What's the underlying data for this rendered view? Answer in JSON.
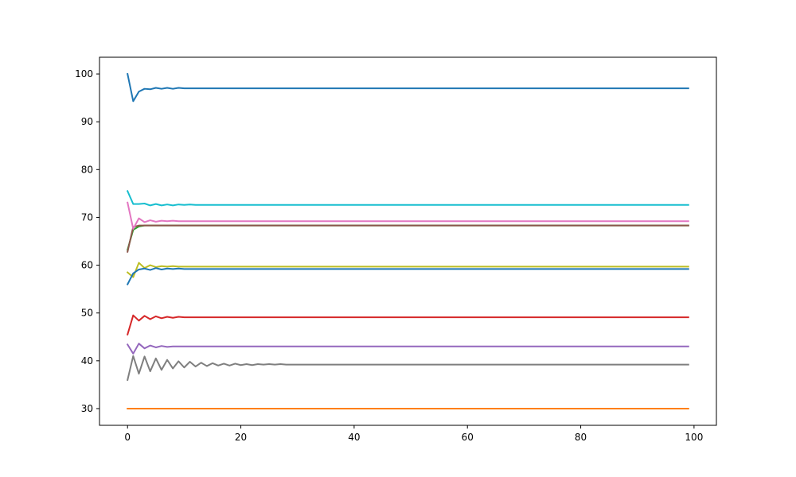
{
  "chart_data": {
    "type": "line",
    "title": "",
    "xlabel": "",
    "ylabel": "",
    "xlim": [
      -4.95,
      103.95
    ],
    "ylim": [
      26.5,
      103.5
    ],
    "x_ticks": [
      0,
      20,
      40,
      60,
      80,
      100
    ],
    "x_tick_labels": [
      "0",
      "20",
      "40",
      "60",
      "80",
      "100"
    ],
    "y_ticks": [
      30,
      40,
      50,
      60,
      70,
      80,
      90,
      100
    ],
    "y_tick_labels": [
      "30",
      "40",
      "50",
      "60",
      "70",
      "80",
      "90",
      "100"
    ],
    "grid": false,
    "legend": "none",
    "n_points": 100,
    "series": [
      {
        "color": "#1f77b4",
        "start": [
          100,
          94.3,
          96.3,
          96.9,
          96.8,
          97.1,
          96.9,
          97.1,
          96.9,
          97.1
        ],
        "final": 97.0
      },
      {
        "color": "#ff7f0e",
        "start": [
          30,
          30,
          30,
          30,
          30,
          30,
          30,
          30,
          30,
          30
        ],
        "final": 30.0
      },
      {
        "color": "#2ca02c",
        "start": [
          63.2,
          67.4,
          68.1,
          68.3,
          68.3,
          68.3,
          68.3,
          68.3,
          68.3,
          68.3
        ],
        "final": 68.3
      },
      {
        "color": "#d62728",
        "start": [
          45.5,
          49.5,
          48.4,
          49.4,
          48.7,
          49.3,
          48.9,
          49.2,
          49.0,
          49.2
        ],
        "final": 49.1
      },
      {
        "color": "#9467bd",
        "start": [
          43.4,
          41.5,
          43.6,
          42.6,
          43.2,
          42.8,
          43.1,
          42.9,
          43.0,
          43.0
        ],
        "final": 43.0
      },
      {
        "color": "#8c564b",
        "start": [
          62.8,
          68.0,
          68.3,
          68.3,
          68.3,
          68.3,
          68.3,
          68.3,
          68.3,
          68.3
        ],
        "final": 68.3
      },
      {
        "color": "#e377c2",
        "start": [
          73.1,
          67.6,
          69.8,
          69.0,
          69.4,
          69.1,
          69.3,
          69.2,
          69.3,
          69.2
        ],
        "final": 69.2
      },
      {
        "color": "#7f7f7f",
        "start": [
          36.0,
          41.0,
          37.3,
          40.9,
          37.8,
          40.5,
          38.1,
          40.2,
          38.4,
          39.9,
          38.6,
          39.8,
          38.8,
          39.6,
          38.9,
          39.5,
          39.0,
          39.4,
          39.0,
          39.4,
          39.1,
          39.3,
          39.1,
          39.3,
          39.2,
          39.3,
          39.2,
          39.3,
          39.2,
          39.2
        ],
        "final": 39.2
      },
      {
        "color": "#bcbd22",
        "start": [
          58.5,
          57.5,
          60.5,
          59.4,
          60.0,
          59.6,
          59.8,
          59.7,
          59.8,
          59.7
        ],
        "final": 59.7
      },
      {
        "color": "#17becf",
        "start": [
          75.5,
          72.8,
          72.8,
          72.9,
          72.5,
          72.8,
          72.5,
          72.7,
          72.5,
          72.7,
          72.6,
          72.7
        ],
        "final": 72.6
      },
      {
        "color": "#1f77b4",
        "start": [
          56.0,
          58.3,
          59.1,
          59.3,
          59.0,
          59.4,
          59.1,
          59.3,
          59.2,
          59.3
        ],
        "final": 59.2
      }
    ]
  }
}
